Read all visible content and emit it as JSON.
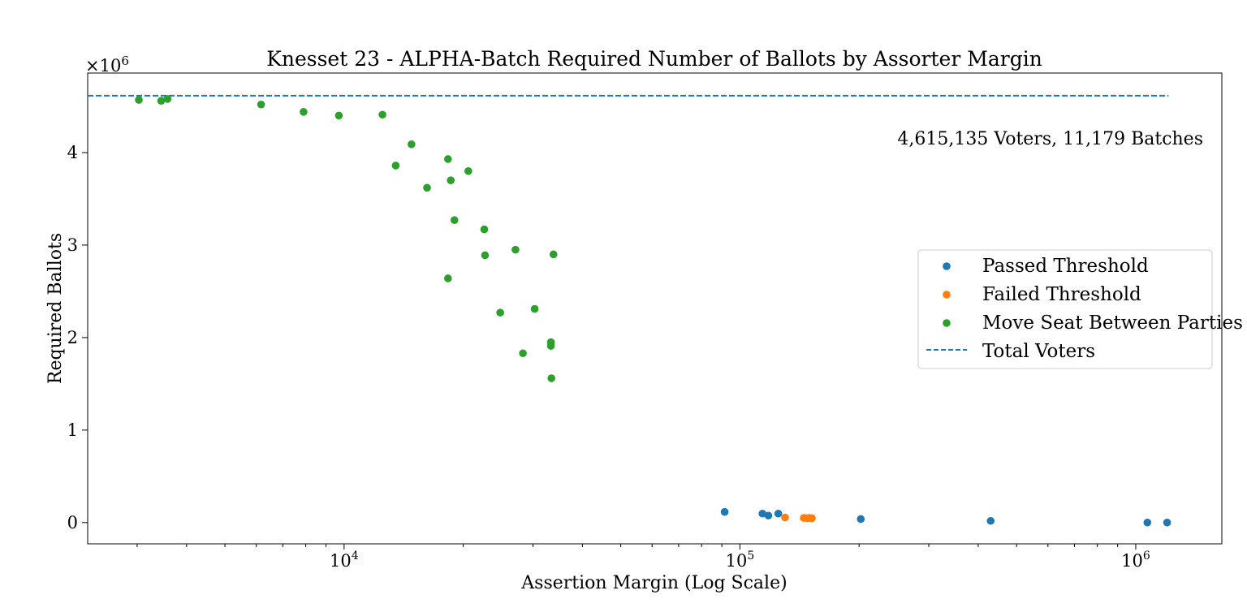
{
  "chart_data": {
    "type": "scatter",
    "title": "Knesset 23 - ALPHA-Batch Required Number of Ballots by Assorter Margin",
    "xlabel": "Assertion Margin (Log Scale)",
    "ylabel": "Required Ballots",
    "x_scale": "log",
    "xlim": [
      2250,
      1650000
    ],
    "ylim": [
      -230000,
      4860000
    ],
    "y_multiplier_label": "×10",
    "y_multiplier_exponent": "6",
    "x_tick_labels": [
      {
        "base": "10",
        "exp": "4",
        "value": 10000
      },
      {
        "base": "10",
        "exp": "5",
        "value": 100000
      },
      {
        "base": "10",
        "exp": "6",
        "value": 1000000
      }
    ],
    "y_tick_labels": [
      {
        "label": "0",
        "value": 0
      },
      {
        "label": "1",
        "value": 1000000
      },
      {
        "label": "2",
        "value": 2000000
      },
      {
        "label": "3",
        "value": 3000000
      },
      {
        "label": "4",
        "value": 4000000
      }
    ],
    "grid": false,
    "legend_position": "center-right",
    "annotation": "4,615,135 Voters, 11,179 Batches",
    "series": [
      {
        "name": "Passed Threshold",
        "color": "#1f77b4",
        "points": [
          [
            91500,
            115000
          ],
          [
            114000,
            97000
          ],
          [
            118000,
            75000
          ],
          [
            125000,
            97000
          ],
          [
            202000,
            38000
          ],
          [
            430000,
            18000
          ],
          [
            1070000,
            0
          ],
          [
            1200000,
            0
          ]
        ]
      },
      {
        "name": "Failed Threshold",
        "color": "#ff7f0e",
        "points": [
          [
            130000,
            55000
          ],
          [
            145000,
            50000
          ],
          [
            148000,
            48000
          ],
          [
            150000,
            50000
          ],
          [
            152000,
            47000
          ]
        ]
      },
      {
        "name": "Move Seat Between Parties",
        "color": "#2ca02c",
        "points": [
          [
            3030,
            4570000
          ],
          [
            3450,
            4560000
          ],
          [
            3580,
            4580000
          ],
          [
            6170,
            4520000
          ],
          [
            7900,
            4440000
          ],
          [
            9700,
            4400000
          ],
          [
            12500,
            4410000
          ],
          [
            13500,
            3860000
          ],
          [
            14800,
            4090000
          ],
          [
            16200,
            3620000
          ],
          [
            18300,
            3930000
          ],
          [
            18300,
            2640000
          ],
          [
            18600,
            3700000
          ],
          [
            19000,
            3270000
          ],
          [
            20600,
            3800000
          ],
          [
            22600,
            3170000
          ],
          [
            22700,
            2890000
          ],
          [
            24800,
            2270000
          ],
          [
            27100,
            2950000
          ],
          [
            28300,
            1830000
          ],
          [
            30300,
            2310000
          ],
          [
            33300,
            1950000
          ],
          [
            33300,
            1910000
          ],
          [
            33400,
            1560000
          ],
          [
            33800,
            2900000
          ]
        ]
      },
      {
        "name": "Total Voters",
        "color": "#1f77b4",
        "style": "dashed",
        "x_range": [
          2250,
          1210000
        ],
        "y": 4615135
      }
    ]
  }
}
